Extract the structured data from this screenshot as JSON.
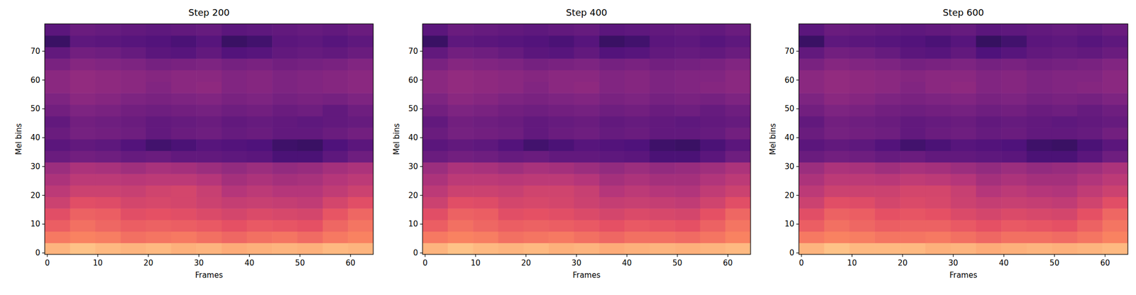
{
  "chart_data": [
    {
      "type": "heatmap",
      "title": "Step 200",
      "x_label": "Frames",
      "y_label": "Mel bins",
      "xlim": [
        -0.5,
        64.5
      ],
      "ylim": [
        -0.5,
        79.5
      ],
      "xticks": [
        0,
        10,
        20,
        30,
        40,
        50,
        60
      ],
      "yticks": [
        0,
        10,
        20,
        30,
        40,
        50,
        60,
        70
      ],
      "x_edges": [
        -0.5,
        4.5,
        9.5,
        14.5,
        19.5,
        24.5,
        29.5,
        34.5,
        39.5,
        44.5,
        49.5,
        54.5,
        59.5,
        64.5
      ],
      "y_edges": [
        -0.5,
        3.5,
        7.5,
        11.5,
        15.5,
        19.5,
        23.5,
        27.5,
        31.5,
        35.5,
        39.5,
        43.5,
        47.5,
        51.5,
        55.5,
        59.5,
        63.5,
        67.5,
        71.5,
        75.5,
        79.5
      ],
      "color_range": [
        0,
        1
      ],
      "cells": [
        [
          0.85,
          0.88,
          0.86,
          0.85,
          0.86,
          0.84,
          0.85,
          0.83,
          0.84,
          0.85,
          0.84,
          0.86,
          0.85
        ],
        [
          0.72,
          0.74,
          0.73,
          0.7,
          0.71,
          0.72,
          0.7,
          0.68,
          0.7,
          0.71,
          0.69,
          0.72,
          0.74
        ],
        [
          0.66,
          0.7,
          0.68,
          0.66,
          0.67,
          0.66,
          0.65,
          0.63,
          0.65,
          0.64,
          0.63,
          0.68,
          0.71
        ],
        [
          0.62,
          0.67,
          0.66,
          0.62,
          0.63,
          0.62,
          0.6,
          0.58,
          0.6,
          0.59,
          0.58,
          0.64,
          0.68
        ],
        [
          0.56,
          0.62,
          0.61,
          0.58,
          0.59,
          0.58,
          0.56,
          0.54,
          0.55,
          0.54,
          0.53,
          0.58,
          0.62
        ],
        [
          0.52,
          0.56,
          0.56,
          0.55,
          0.57,
          0.58,
          0.55,
          0.5,
          0.52,
          0.5,
          0.5,
          0.53,
          0.56
        ],
        [
          0.48,
          0.52,
          0.52,
          0.51,
          0.52,
          0.52,
          0.5,
          0.46,
          0.48,
          0.46,
          0.47,
          0.5,
          0.52
        ],
        [
          0.44,
          0.48,
          0.47,
          0.45,
          0.47,
          0.46,
          0.44,
          0.42,
          0.44,
          0.42,
          0.43,
          0.46,
          0.48
        ],
        [
          0.32,
          0.34,
          0.33,
          0.31,
          0.32,
          0.3,
          0.3,
          0.29,
          0.28,
          0.24,
          0.24,
          0.29,
          0.33
        ],
        [
          0.28,
          0.3,
          0.29,
          0.26,
          0.22,
          0.24,
          0.27,
          0.26,
          0.25,
          0.21,
          0.2,
          0.25,
          0.28
        ],
        [
          0.32,
          0.35,
          0.34,
          0.33,
          0.3,
          0.32,
          0.33,
          0.31,
          0.32,
          0.3,
          0.3,
          0.32,
          0.34
        ],
        [
          0.3,
          0.34,
          0.33,
          0.32,
          0.3,
          0.31,
          0.32,
          0.3,
          0.31,
          0.3,
          0.29,
          0.3,
          0.31
        ],
        [
          0.34,
          0.37,
          0.36,
          0.34,
          0.33,
          0.34,
          0.35,
          0.33,
          0.34,
          0.32,
          0.33,
          0.3,
          0.33
        ],
        [
          0.37,
          0.4,
          0.39,
          0.37,
          0.36,
          0.37,
          0.38,
          0.36,
          0.37,
          0.35,
          0.36,
          0.35,
          0.37
        ],
        [
          0.4,
          0.42,
          0.41,
          0.4,
          0.38,
          0.4,
          0.41,
          0.38,
          0.39,
          0.37,
          0.38,
          0.39,
          0.4
        ],
        [
          0.4,
          0.42,
          0.41,
          0.4,
          0.39,
          0.4,
          0.4,
          0.38,
          0.39,
          0.37,
          0.38,
          0.39,
          0.4
        ],
        [
          0.36,
          0.39,
          0.38,
          0.37,
          0.35,
          0.36,
          0.37,
          0.35,
          0.36,
          0.34,
          0.35,
          0.36,
          0.38
        ],
        [
          0.3,
          0.34,
          0.33,
          0.31,
          0.28,
          0.27,
          0.3,
          0.26,
          0.27,
          0.3,
          0.31,
          0.3,
          0.32
        ],
        [
          0.2,
          0.29,
          0.28,
          0.27,
          0.26,
          0.24,
          0.27,
          0.2,
          0.22,
          0.28,
          0.29,
          0.27,
          0.29
        ],
        [
          0.28,
          0.32,
          0.31,
          0.3,
          0.29,
          0.3,
          0.31,
          0.28,
          0.29,
          0.3,
          0.31,
          0.3,
          0.32
        ]
      ]
    },
    {
      "type": "heatmap",
      "title": "Step 400",
      "x_label": "Frames",
      "y_label": "Mel bins",
      "xlim": [
        -0.5,
        64.5
      ],
      "ylim": [
        -0.5,
        79.5
      ],
      "xticks": [
        0,
        10,
        20,
        30,
        40,
        50,
        60
      ],
      "yticks": [
        0,
        10,
        20,
        30,
        40,
        50,
        60,
        70
      ],
      "x_edges": [
        -0.5,
        4.5,
        9.5,
        14.5,
        19.5,
        24.5,
        29.5,
        34.5,
        39.5,
        44.5,
        49.5,
        54.5,
        59.5,
        64.5
      ],
      "y_edges": [
        -0.5,
        3.5,
        7.5,
        11.5,
        15.5,
        19.5,
        23.5,
        27.5,
        31.5,
        35.5,
        39.5,
        43.5,
        47.5,
        51.5,
        55.5,
        59.5,
        63.5,
        67.5,
        71.5,
        75.5,
        79.5
      ],
      "color_range": [
        0,
        1
      ],
      "cells": [
        [
          0.85,
          0.88,
          0.86,
          0.85,
          0.86,
          0.84,
          0.85,
          0.83,
          0.84,
          0.85,
          0.84,
          0.85,
          0.86
        ],
        [
          0.72,
          0.74,
          0.73,
          0.7,
          0.71,
          0.72,
          0.7,
          0.68,
          0.7,
          0.7,
          0.69,
          0.71,
          0.74
        ],
        [
          0.66,
          0.7,
          0.68,
          0.66,
          0.67,
          0.66,
          0.65,
          0.63,
          0.65,
          0.64,
          0.63,
          0.67,
          0.71
        ],
        [
          0.62,
          0.67,
          0.66,
          0.62,
          0.63,
          0.62,
          0.6,
          0.58,
          0.6,
          0.59,
          0.58,
          0.63,
          0.68
        ],
        [
          0.56,
          0.62,
          0.61,
          0.58,
          0.59,
          0.58,
          0.56,
          0.54,
          0.55,
          0.54,
          0.53,
          0.57,
          0.62
        ],
        [
          0.52,
          0.56,
          0.56,
          0.55,
          0.57,
          0.57,
          0.55,
          0.5,
          0.52,
          0.5,
          0.49,
          0.53,
          0.56
        ],
        [
          0.48,
          0.52,
          0.52,
          0.51,
          0.52,
          0.52,
          0.5,
          0.46,
          0.48,
          0.46,
          0.46,
          0.49,
          0.52
        ],
        [
          0.44,
          0.48,
          0.47,
          0.45,
          0.47,
          0.46,
          0.44,
          0.42,
          0.44,
          0.42,
          0.43,
          0.45,
          0.48
        ],
        [
          0.32,
          0.34,
          0.33,
          0.31,
          0.32,
          0.3,
          0.3,
          0.29,
          0.28,
          0.24,
          0.24,
          0.28,
          0.33
        ],
        [
          0.28,
          0.3,
          0.29,
          0.26,
          0.22,
          0.24,
          0.27,
          0.26,
          0.25,
          0.21,
          0.2,
          0.24,
          0.28
        ],
        [
          0.32,
          0.35,
          0.34,
          0.33,
          0.3,
          0.32,
          0.33,
          0.31,
          0.32,
          0.3,
          0.3,
          0.31,
          0.34
        ],
        [
          0.3,
          0.34,
          0.33,
          0.32,
          0.3,
          0.31,
          0.32,
          0.3,
          0.31,
          0.3,
          0.29,
          0.3,
          0.31
        ],
        [
          0.34,
          0.37,
          0.36,
          0.34,
          0.33,
          0.34,
          0.35,
          0.33,
          0.34,
          0.32,
          0.33,
          0.31,
          0.33
        ],
        [
          0.37,
          0.4,
          0.39,
          0.37,
          0.36,
          0.37,
          0.38,
          0.36,
          0.37,
          0.35,
          0.36,
          0.35,
          0.37
        ],
        [
          0.4,
          0.42,
          0.41,
          0.4,
          0.38,
          0.4,
          0.41,
          0.38,
          0.39,
          0.37,
          0.38,
          0.39,
          0.4
        ],
        [
          0.4,
          0.42,
          0.41,
          0.4,
          0.39,
          0.4,
          0.4,
          0.38,
          0.39,
          0.37,
          0.38,
          0.38,
          0.4
        ],
        [
          0.36,
          0.39,
          0.38,
          0.37,
          0.35,
          0.36,
          0.37,
          0.35,
          0.36,
          0.34,
          0.35,
          0.36,
          0.38
        ],
        [
          0.3,
          0.34,
          0.33,
          0.31,
          0.28,
          0.27,
          0.3,
          0.26,
          0.27,
          0.3,
          0.31,
          0.3,
          0.32
        ],
        [
          0.2,
          0.29,
          0.28,
          0.27,
          0.26,
          0.24,
          0.27,
          0.2,
          0.22,
          0.28,
          0.29,
          0.27,
          0.29
        ],
        [
          0.28,
          0.32,
          0.31,
          0.3,
          0.29,
          0.3,
          0.31,
          0.28,
          0.29,
          0.3,
          0.31,
          0.3,
          0.32
        ]
      ]
    },
    {
      "type": "heatmap",
      "title": "Step 600",
      "x_label": "Frames",
      "y_label": "Mel bins",
      "xlim": [
        -0.5,
        64.5
      ],
      "ylim": [
        -0.5,
        79.5
      ],
      "xticks": [
        0,
        10,
        20,
        30,
        40,
        50,
        60
      ],
      "yticks": [
        0,
        10,
        20,
        30,
        40,
        50,
        60,
        70
      ],
      "x_edges": [
        -0.5,
        4.5,
        9.5,
        14.5,
        19.5,
        24.5,
        29.5,
        34.5,
        39.5,
        44.5,
        49.5,
        54.5,
        59.5,
        64.5
      ],
      "y_edges": [
        -0.5,
        3.5,
        7.5,
        11.5,
        15.5,
        19.5,
        23.5,
        27.5,
        31.5,
        35.5,
        39.5,
        43.5,
        47.5,
        51.5,
        55.5,
        59.5,
        63.5,
        67.5,
        71.5,
        75.5,
        79.5
      ],
      "color_range": [
        0,
        1
      ],
      "cells": [
        [
          0.85,
          0.88,
          0.86,
          0.86,
          0.86,
          0.84,
          0.85,
          0.83,
          0.84,
          0.85,
          0.84,
          0.85,
          0.86
        ],
        [
          0.72,
          0.74,
          0.73,
          0.71,
          0.71,
          0.72,
          0.7,
          0.68,
          0.7,
          0.7,
          0.69,
          0.71,
          0.74
        ],
        [
          0.66,
          0.7,
          0.68,
          0.66,
          0.67,
          0.67,
          0.65,
          0.63,
          0.65,
          0.64,
          0.63,
          0.67,
          0.71
        ],
        [
          0.62,
          0.67,
          0.66,
          0.63,
          0.64,
          0.63,
          0.6,
          0.58,
          0.6,
          0.59,
          0.58,
          0.63,
          0.68
        ],
        [
          0.56,
          0.62,
          0.61,
          0.58,
          0.6,
          0.59,
          0.56,
          0.54,
          0.55,
          0.54,
          0.53,
          0.57,
          0.62
        ],
        [
          0.52,
          0.56,
          0.56,
          0.56,
          0.58,
          0.58,
          0.55,
          0.5,
          0.52,
          0.5,
          0.49,
          0.53,
          0.56
        ],
        [
          0.48,
          0.52,
          0.52,
          0.51,
          0.53,
          0.52,
          0.5,
          0.46,
          0.48,
          0.46,
          0.46,
          0.49,
          0.52
        ],
        [
          0.44,
          0.48,
          0.47,
          0.45,
          0.47,
          0.46,
          0.44,
          0.42,
          0.44,
          0.42,
          0.43,
          0.45,
          0.48
        ],
        [
          0.32,
          0.34,
          0.33,
          0.31,
          0.32,
          0.3,
          0.3,
          0.29,
          0.28,
          0.24,
          0.24,
          0.28,
          0.33
        ],
        [
          0.28,
          0.3,
          0.29,
          0.26,
          0.22,
          0.24,
          0.27,
          0.26,
          0.25,
          0.21,
          0.2,
          0.24,
          0.28
        ],
        [
          0.32,
          0.35,
          0.34,
          0.33,
          0.3,
          0.32,
          0.33,
          0.31,
          0.32,
          0.3,
          0.3,
          0.31,
          0.34
        ],
        [
          0.3,
          0.34,
          0.33,
          0.32,
          0.3,
          0.31,
          0.32,
          0.3,
          0.31,
          0.3,
          0.29,
          0.3,
          0.31
        ],
        [
          0.34,
          0.37,
          0.36,
          0.34,
          0.33,
          0.34,
          0.35,
          0.33,
          0.34,
          0.32,
          0.33,
          0.31,
          0.33
        ],
        [
          0.37,
          0.4,
          0.39,
          0.37,
          0.36,
          0.37,
          0.38,
          0.36,
          0.37,
          0.35,
          0.36,
          0.35,
          0.37
        ],
        [
          0.4,
          0.42,
          0.41,
          0.4,
          0.38,
          0.4,
          0.41,
          0.38,
          0.39,
          0.37,
          0.38,
          0.39,
          0.4
        ],
        [
          0.4,
          0.42,
          0.41,
          0.4,
          0.39,
          0.4,
          0.4,
          0.38,
          0.39,
          0.37,
          0.38,
          0.38,
          0.4
        ],
        [
          0.36,
          0.39,
          0.38,
          0.37,
          0.35,
          0.36,
          0.37,
          0.35,
          0.36,
          0.34,
          0.35,
          0.36,
          0.38
        ],
        [
          0.3,
          0.34,
          0.33,
          0.31,
          0.28,
          0.27,
          0.3,
          0.25,
          0.27,
          0.3,
          0.31,
          0.3,
          0.32
        ],
        [
          0.2,
          0.29,
          0.28,
          0.27,
          0.26,
          0.24,
          0.27,
          0.19,
          0.22,
          0.28,
          0.29,
          0.27,
          0.29
        ],
        [
          0.28,
          0.32,
          0.31,
          0.3,
          0.29,
          0.3,
          0.31,
          0.28,
          0.29,
          0.3,
          0.31,
          0.3,
          0.32
        ]
      ]
    }
  ]
}
